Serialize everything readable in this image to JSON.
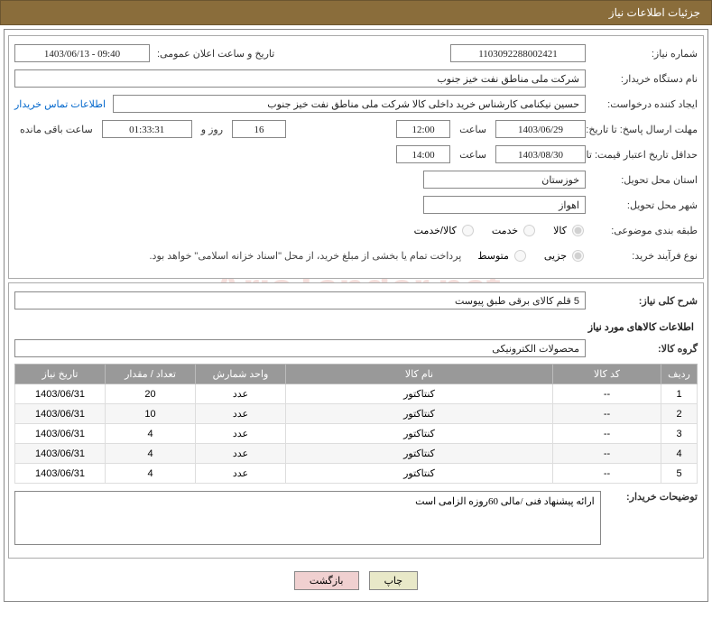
{
  "header": {
    "title": "جزئیات اطلاعات نیاز"
  },
  "fields": {
    "need_no_label": "شماره نیاز:",
    "need_no": "1103092288002421",
    "announce_label": "تاریخ و ساعت اعلان عمومی:",
    "announce": "1403/06/13 - 09:40",
    "buyer_org_label": "نام دستگاه خریدار:",
    "buyer_org": "شرکت ملی مناطق نفت خیز جنوب",
    "requester_label": "ایجاد کننده درخواست:",
    "requester": "حسین  نیکنامی  کارشناس خرید داخلی کالا شرکت ملی مناطق نفت خیز جنوب",
    "contact_link": "اطلاعات تماس خریدار",
    "resp_deadline_label": "مهلت ارسال پاسخ: تا تاریخ:",
    "resp_date": "1403/06/29",
    "time_label": "ساعت",
    "resp_time": "12:00",
    "days_val": "16",
    "days_label": "روز و",
    "countdown": "01:33:31",
    "remain_label": "ساعت باقی مانده",
    "price_valid_label": "حداقل تاریخ اعتبار قیمت: تا تاریخ:",
    "price_date": "1403/08/30",
    "price_time": "14:00",
    "province_label": "استان محل تحویل:",
    "province": "خوزستان",
    "city_label": "شهر محل تحویل:",
    "city": "اهواز",
    "category_label": "طبقه بندی موضوعی:",
    "cat_goods": "کالا",
    "cat_service": "خدمت",
    "cat_both": "کالا/خدمت",
    "process_label": "نوع فرآیند خرید:",
    "proc_small": "جزیی",
    "proc_medium": "متوسط",
    "payment_note": "پرداخت تمام یا بخشی از مبلغ خرید، از محل \"اسناد خزانه اسلامی\" خواهد بود.",
    "summary_label": "شرح کلی نیاز:",
    "summary": "5 قلم کالای برقی طبق پیوست",
    "goods_list_title": "اطلاعات کالاهای مورد نیاز",
    "group_label": "گروه کالا:",
    "group": "محصولات الکترونیکی",
    "buyer_notes_label": "توضیحات خریدار:",
    "buyer_notes": "ارائه پیشنهاد فنی /مالی 60روزه الزامی است"
  },
  "table": {
    "headers": {
      "row": "ردیف",
      "code": "کد کالا",
      "name": "نام کالا",
      "unit": "واحد شمارش",
      "qty": "تعداد / مقدار",
      "date": "تاریخ نیاز"
    },
    "rows": [
      {
        "n": "1",
        "code": "--",
        "name": "کنتاکتور",
        "unit": "عدد",
        "qty": "20",
        "date": "1403/06/31"
      },
      {
        "n": "2",
        "code": "--",
        "name": "کنتاکتور",
        "unit": "عدد",
        "qty": "10",
        "date": "1403/06/31"
      },
      {
        "n": "3",
        "code": "--",
        "name": "کنتاکتور",
        "unit": "عدد",
        "qty": "4",
        "date": "1403/06/31"
      },
      {
        "n": "4",
        "code": "--",
        "name": "کنتاکتور",
        "unit": "عدد",
        "qty": "4",
        "date": "1403/06/31"
      },
      {
        "n": "5",
        "code": "--",
        "name": "کنتاکتور",
        "unit": "عدد",
        "qty": "4",
        "date": "1403/06/31"
      }
    ]
  },
  "buttons": {
    "print": "چاپ",
    "back": "بازگشت"
  },
  "watermark": "AriaTender.net",
  "colors": {
    "header_bg": "#8a6d3b",
    "th_bg": "#999999",
    "border": "#888888",
    "link": "#0066cc"
  }
}
